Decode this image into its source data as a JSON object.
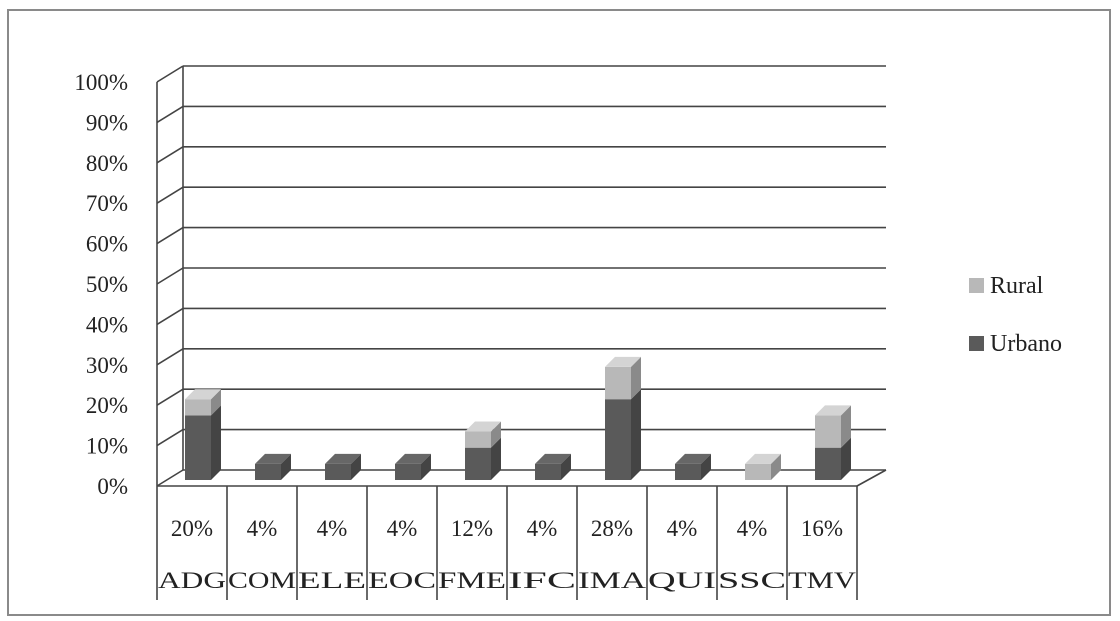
{
  "chart_data": {
    "type": "bar",
    "stacked": true,
    "three_d": true,
    "categories": [
      "ADG",
      "COM",
      "ELE",
      "EOC",
      "FME",
      "IFC",
      "IMA",
      "QUI",
      "SSC",
      "TMV"
    ],
    "totals_labels": [
      "20%",
      "4%",
      "4%",
      "4%",
      "12%",
      "4%",
      "28%",
      "4%",
      "4%",
      "16%"
    ],
    "series": [
      {
        "name": "Urbano",
        "values": [
          16,
          4,
          4,
          4,
          8,
          4,
          20,
          4,
          0,
          8
        ],
        "color": "#5a5a5a"
      },
      {
        "name": "Rural",
        "values": [
          4,
          0,
          0,
          0,
          4,
          0,
          8,
          0,
          4,
          8
        ],
        "color": "#b8b8b8"
      }
    ],
    "yticks": [
      "0%",
      "10%",
      "20%",
      "30%",
      "40%",
      "50%",
      "60%",
      "70%",
      "80%",
      "90%",
      "100%"
    ],
    "ylim": [
      0,
      100
    ],
    "grid": true,
    "legend_position": "right",
    "legend_order": [
      "Rural",
      "Urbano"
    ],
    "data_table_below": true
  }
}
